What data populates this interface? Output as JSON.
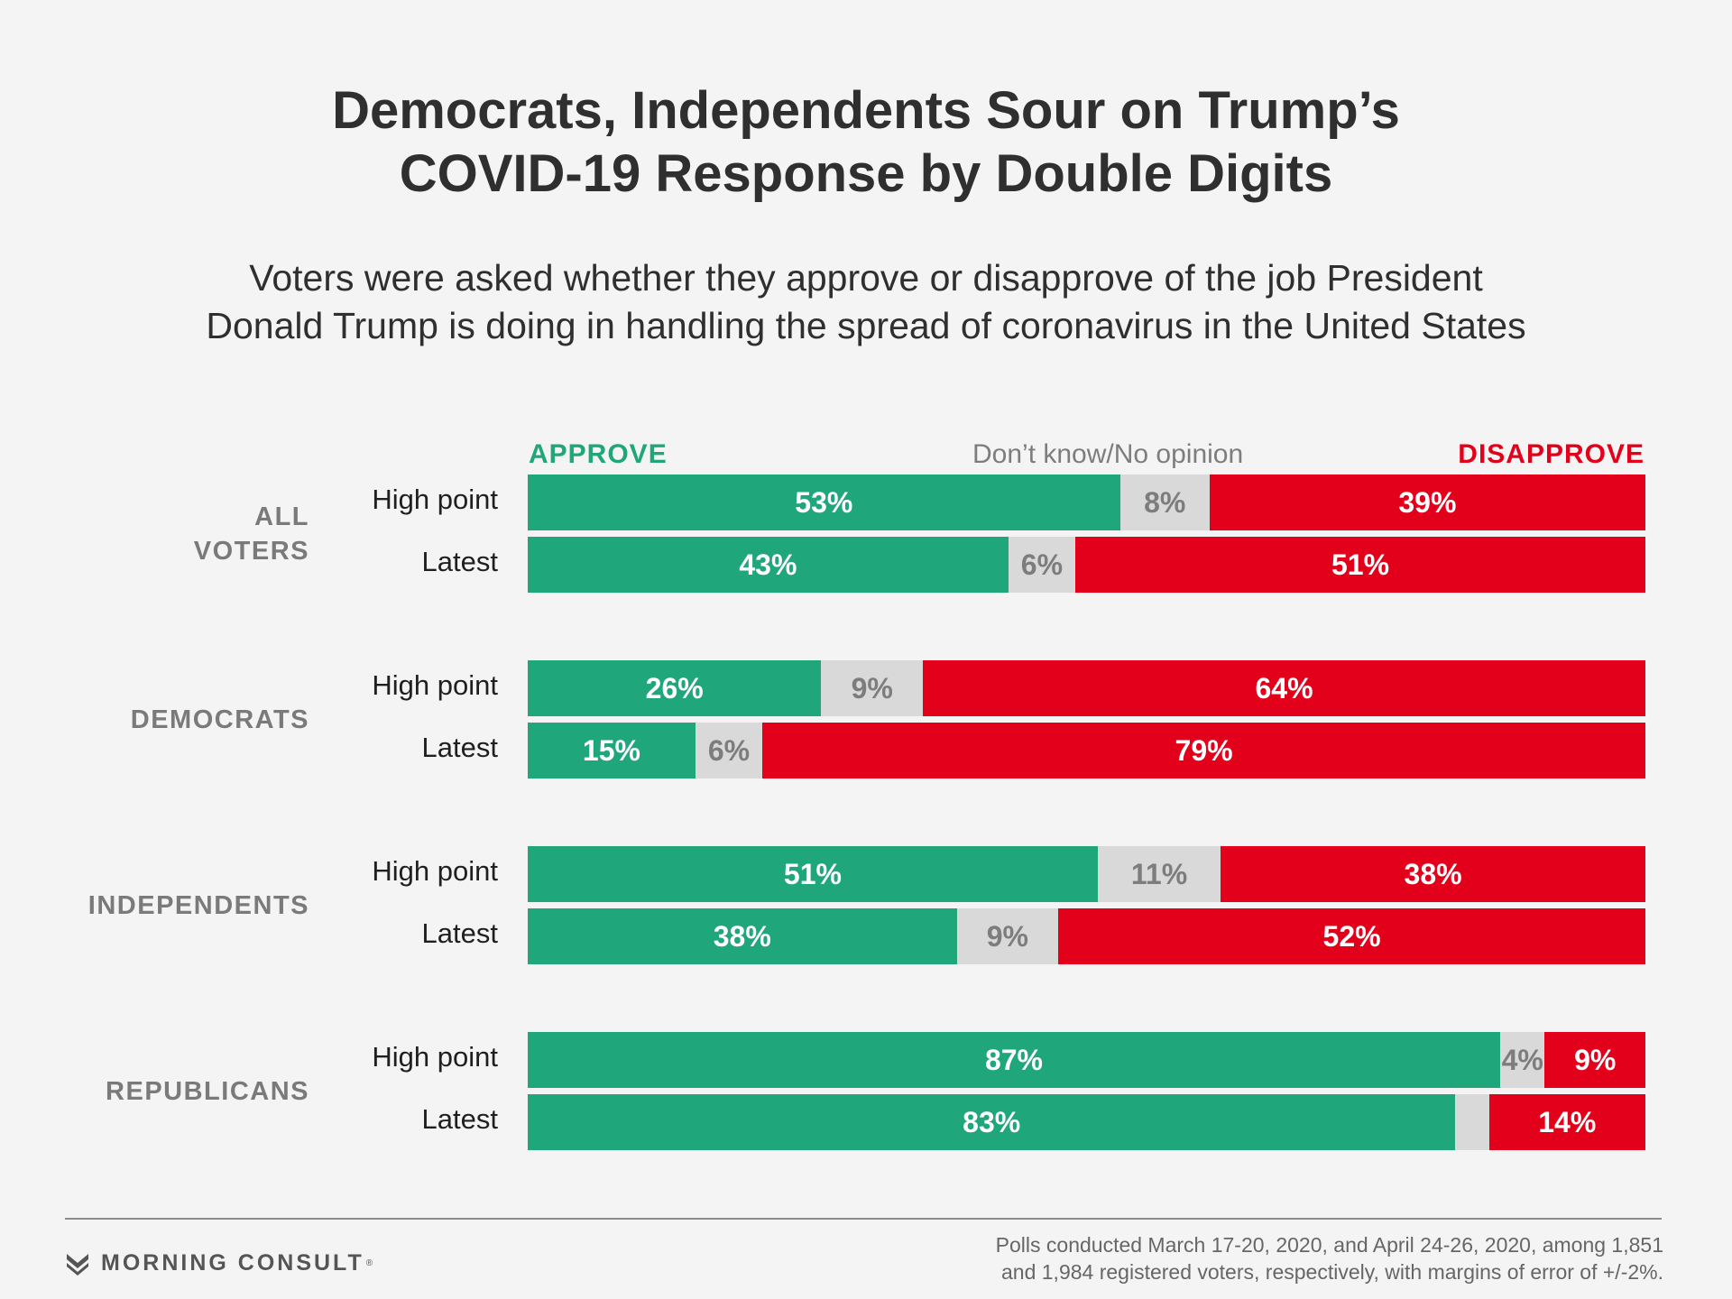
{
  "title_line1": "Democrats, Independents Sour on Trump’s",
  "title_line2": "COVID-19 Response by Double Digits",
  "subtitle_line1": "Voters were asked whether they approve or disapprove of the job President",
  "subtitle_line2": "Donald Trump is doing in handling the spread of coronavirus in the United States",
  "colors": {
    "approve": "#1fa67a",
    "neutral": "#d9d9d9",
    "disapprove": "#e2001a",
    "group_label": "#7a7a7a",
    "neutral_text": "#7d7d7d"
  },
  "chart_data": {
    "type": "bar",
    "orientation": "horizontal",
    "stacked": true,
    "legend": [
      {
        "label": "APPROVE",
        "series": "approve",
        "placement": "top-left"
      },
      {
        "label": "Don’t know/No opinion",
        "series": "neutral",
        "placement": "top-center"
      },
      {
        "label": "DISAPPROVE",
        "series": "disapprove",
        "placement": "top-right"
      }
    ],
    "groups": [
      {
        "label_lines": [
          "ALL",
          "VOTERS"
        ],
        "rows": [
          {
            "label": "High point",
            "approve": 53,
            "neutral": 8,
            "disapprove": 39,
            "approve_text": "53%",
            "neutral_text": "8%",
            "disapprove_text": "39%"
          },
          {
            "label": "Latest",
            "approve": 43,
            "neutral": 6,
            "disapprove": 51,
            "approve_text": "43%",
            "neutral_text": "6%",
            "disapprove_text": "51%"
          }
        ]
      },
      {
        "label_lines": [
          "DEMOCRATS"
        ],
        "rows": [
          {
            "label": "High point",
            "approve": 26,
            "neutral": 9,
            "disapprove": 64,
            "approve_text": "26%",
            "neutral_text": "9%",
            "disapprove_text": "64%"
          },
          {
            "label": "Latest",
            "approve": 15,
            "neutral": 6,
            "disapprove": 79,
            "approve_text": "15%",
            "neutral_text": "6%",
            "disapprove_text": "79%"
          }
        ]
      },
      {
        "label_lines": [
          "INDEPENDENTS"
        ],
        "rows": [
          {
            "label": "High point",
            "approve": 51,
            "neutral": 11,
            "disapprove": 38,
            "approve_text": "51%",
            "neutral_text": "11%",
            "disapprove_text": "38%"
          },
          {
            "label": "Latest",
            "approve": 38,
            "neutral": 9,
            "disapprove": 52,
            "approve_text": "38%",
            "neutral_text": "9%",
            "disapprove_text": "52%"
          }
        ]
      },
      {
        "label_lines": [
          "REPUBLICANS"
        ],
        "rows": [
          {
            "label": "High point",
            "approve": 87,
            "neutral": 4,
            "disapprove": 9,
            "approve_text": "87%",
            "neutral_text": "4%",
            "disapprove_text": "9%"
          },
          {
            "label": "Latest",
            "approve": 83,
            "neutral": 3,
            "disapprove": 14,
            "approve_text": "83%",
            "neutral_text": "",
            "disapprove_text": "14%"
          }
        ]
      }
    ]
  },
  "brand": {
    "name": "MORNING CONSULT",
    "mark": "®",
    "icon": "morning-consult-logo-icon"
  },
  "footnote_line1": "Polls conducted March 17-20, 2020, and April 24-26, 2020, among 1,851",
  "footnote_line2": "and 1,984 registered voters, respectively, with margins of error of +/-2%."
}
